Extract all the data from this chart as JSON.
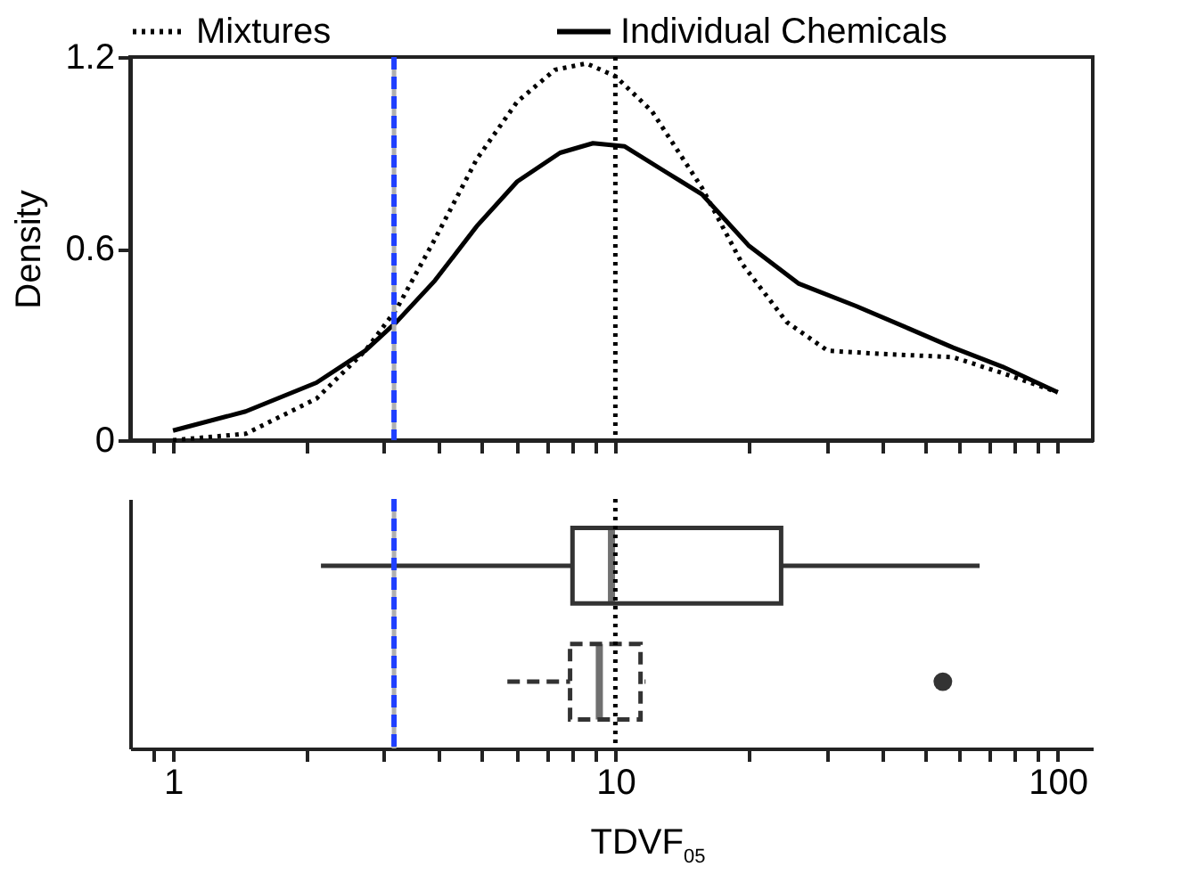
{
  "chart_data": [
    {
      "type": "line",
      "ylabel": "Density",
      "legend": "top",
      "tick_labels": "y",
      "xlim": [
        0.8,
        120
      ],
      "ylim": [
        0,
        1.2
      ],
      "log": "x",
      "xticks": [
        {
          "value": 0.9,
          "label": null
        },
        {
          "value": 1,
          "label": null
        },
        {
          "value": 2,
          "label": null
        },
        {
          "value": 3,
          "label": null
        },
        {
          "value": 4,
          "label": null
        },
        {
          "value": 5,
          "label": null
        },
        {
          "value": 6,
          "label": null
        },
        {
          "value": 7,
          "label": null
        },
        {
          "value": 8,
          "label": null
        },
        {
          "value": 9,
          "label": null
        },
        {
          "value": 10,
          "label": null
        },
        {
          "value": 20,
          "label": null
        },
        {
          "value": 30,
          "label": null
        },
        {
          "value": 40,
          "label": null
        },
        {
          "value": 50,
          "label": null
        },
        {
          "value": 60,
          "label": null
        },
        {
          "value": 70,
          "label": null
        },
        {
          "value": 80,
          "label": null
        },
        {
          "value": 90,
          "label": null
        },
        {
          "value": 100,
          "label": null
        }
      ],
      "yticks": [
        0,
        0.6,
        1.2
      ],
      "ref_lines": [
        {
          "axis": "x",
          "value": 3.16,
          "color": "#b0b0b0",
          "line_style": "solid"
        },
        {
          "axis": "x",
          "value": 3.16,
          "color": "#1f3fff",
          "line_style": "dashed"
        },
        {
          "axis": "x",
          "value": 10,
          "color": "#000000",
          "line_style": "dotted"
        }
      ],
      "series": [
        {
          "name": "Mixtures",
          "color": "#000000",
          "line_style": "dotted",
          "x": [
            1,
            1.46,
            2.11,
            2.72,
            3.2,
            3.91,
            4.86,
            6.0,
            7.3,
            8.6,
            10,
            12.1,
            15.7,
            19.4,
            24.4,
            30.2,
            40.2,
            58,
            75,
            100
          ],
          "values": [
            0.0,
            0.02,
            0.13,
            0.28,
            0.41,
            0.63,
            0.88,
            1.06,
            1.16,
            1.18,
            1.14,
            1.03,
            0.79,
            0.55,
            0.37,
            0.28,
            0.27,
            0.26,
            0.21,
            0.15
          ]
        },
        {
          "name": "Individual Chemicals",
          "color": "#000000",
          "line_style": "solid",
          "x": [
            1,
            1.46,
            2.11,
            2.72,
            3.2,
            3.91,
            4.86,
            6.0,
            7.5,
            8.9,
            10.5,
            13,
            15.7,
            20,
            26,
            35,
            46,
            58,
            75,
            100
          ],
          "values": [
            0.03,
            0.09,
            0.18,
            0.28,
            0.37,
            0.5,
            0.67,
            0.81,
            0.9,
            0.93,
            0.92,
            0.84,
            0.77,
            0.61,
            0.49,
            0.42,
            0.35,
            0.29,
            0.23,
            0.15
          ]
        }
      ]
    },
    {
      "type": "box",
      "orientation": "horizontal",
      "xlabel": "TDVF$_{05}$",
      "tick_labels": "x",
      "log": "x",
      "xlim": [
        0.8,
        120
      ],
      "xticks": [
        {
          "value": 0.9,
          "label": null
        },
        1,
        {
          "value": 2,
          "label": null
        },
        {
          "value": 3,
          "label": null
        },
        {
          "value": 4,
          "label": null
        },
        {
          "value": 5,
          "label": null
        },
        {
          "value": 6,
          "label": null
        },
        {
          "value": 7,
          "label": null
        },
        {
          "value": 8,
          "label": null
        },
        {
          "value": 9,
          "label": null
        },
        10,
        {
          "value": 20,
          "label": null
        },
        {
          "value": 30,
          "label": null
        },
        {
          "value": 40,
          "label": null
        },
        {
          "value": 50,
          "label": null
        },
        {
          "value": 60,
          "label": null
        },
        {
          "value": 70,
          "label": null
        },
        {
          "value": 80,
          "label": null
        },
        {
          "value": 90,
          "label": null
        },
        100
      ],
      "categories": [
        null,
        null
      ],
      "ref_lines": [
        {
          "axis": "x",
          "value": 3.16,
          "color": "#b0b0b0",
          "line_style": "solid"
        },
        {
          "axis": "x",
          "value": 3.16,
          "color": "#1f3fff",
          "line_style": "dashed"
        },
        {
          "axis": "x",
          "value": 10,
          "color": "#000000",
          "line_style": "dotted"
        }
      ],
      "series": [
        {
          "color": "#333333",
          "line_style": "solid",
          "boxes": [
            {
              "low": 2.16,
              "q1": 8.0,
              "median": 9.8,
              "q3": 23.7,
              "high": 66.6
            },
            null
          ]
        },
        {
          "color": "#333333",
          "line_style": "dashed",
          "boxes": [
            null,
            {
              "low": 5.7,
              "q1": 7.9,
              "median": 9.2,
              "q3": 11.4,
              "high": 11.7,
              "outliers": [
                55
              ]
            }
          ]
        }
      ]
    }
  ]
}
